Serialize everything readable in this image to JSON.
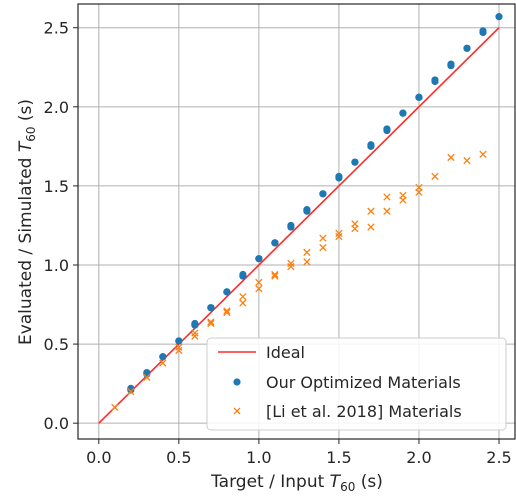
{
  "chart_data": {
    "type": "scatter",
    "title": "",
    "xlabel_main": "Target / Input ",
    "xlabel_sym": "T",
    "xlabel_sub": "60",
    "xlabel_unit": " (s)",
    "ylabel_main": "Evaluated / Simulated ",
    "ylabel_sym": "T",
    "ylabel_sub": "60",
    "ylabel_unit": " (s)",
    "xlim": [
      -0.13,
      2.6
    ],
    "ylim": [
      -0.1,
      2.65
    ],
    "xticks": [
      0.0,
      0.5,
      1.0,
      1.5,
      2.0,
      2.5
    ],
    "xtick_labels": [
      "0.0",
      "0.5",
      "1.0",
      "1.5",
      "2.0",
      "2.5"
    ],
    "yticks": [
      0.0,
      0.5,
      1.0,
      1.5,
      2.0,
      2.5
    ],
    "ytick_labels": [
      "0.0",
      "0.5",
      "1.0",
      "1.5",
      "2.0",
      "2.5"
    ],
    "grid": true,
    "legend_position": "lower-right",
    "ideal": {
      "name": "Ideal",
      "color": "#ff2a2a",
      "x": [
        0.0,
        2.5
      ],
      "y": [
        0.0,
        2.5
      ]
    },
    "series": [
      {
        "name": "Our Optimized Materials",
        "marker": "circle",
        "color": "#1f77b4",
        "x": [
          0.2,
          0.2,
          0.3,
          0.3,
          0.4,
          0.4,
          0.5,
          0.5,
          0.6,
          0.6,
          0.7,
          0.7,
          0.8,
          0.8,
          0.9,
          0.9,
          1.0,
          1.0,
          1.1,
          1.1,
          1.2,
          1.2,
          1.3,
          1.3,
          1.4,
          1.4,
          1.5,
          1.5,
          1.6,
          1.6,
          1.7,
          1.7,
          1.8,
          1.8,
          1.9,
          1.9,
          2.0,
          2.0,
          2.1,
          2.1,
          2.2,
          2.2,
          2.3,
          2.3,
          2.4,
          2.4,
          2.5
        ],
        "y": [
          0.21,
          0.22,
          0.31,
          0.32,
          0.42,
          0.42,
          0.52,
          0.52,
          0.62,
          0.63,
          0.73,
          0.73,
          0.83,
          0.83,
          0.93,
          0.94,
          1.04,
          1.04,
          1.14,
          1.14,
          1.24,
          1.25,
          1.34,
          1.35,
          1.45,
          1.45,
          1.55,
          1.56,
          1.65,
          1.65,
          1.75,
          1.76,
          1.85,
          1.86,
          1.96,
          1.96,
          2.06,
          2.06,
          2.16,
          2.17,
          2.26,
          2.27,
          2.37,
          2.37,
          2.47,
          2.48,
          2.57
        ]
      },
      {
        "name": "[Li et al. 2018] Materials",
        "marker": "x",
        "color": "#ff7f0e",
        "x": [
          0.1,
          0.2,
          0.3,
          0.4,
          0.5,
          0.5,
          0.6,
          0.6,
          0.7,
          0.7,
          0.8,
          0.8,
          0.9,
          0.9,
          1.0,
          1.0,
          1.1,
          1.1,
          1.2,
          1.2,
          1.3,
          1.3,
          1.4,
          1.4,
          1.5,
          1.5,
          1.6,
          1.6,
          1.7,
          1.7,
          1.8,
          1.8,
          1.9,
          1.9,
          2.0,
          2.0,
          2.1,
          2.2,
          2.3,
          2.4
        ],
        "y": [
          0.1,
          0.2,
          0.29,
          0.38,
          0.46,
          0.48,
          0.55,
          0.57,
          0.63,
          0.64,
          0.7,
          0.71,
          0.76,
          0.8,
          0.85,
          0.89,
          0.93,
          0.94,
          0.99,
          1.01,
          1.02,
          1.08,
          1.11,
          1.17,
          1.18,
          1.2,
          1.23,
          1.26,
          1.24,
          1.34,
          1.34,
          1.43,
          1.41,
          1.44,
          1.46,
          1.49,
          1.56,
          1.68,
          1.66,
          1.7
        ]
      }
    ]
  }
}
